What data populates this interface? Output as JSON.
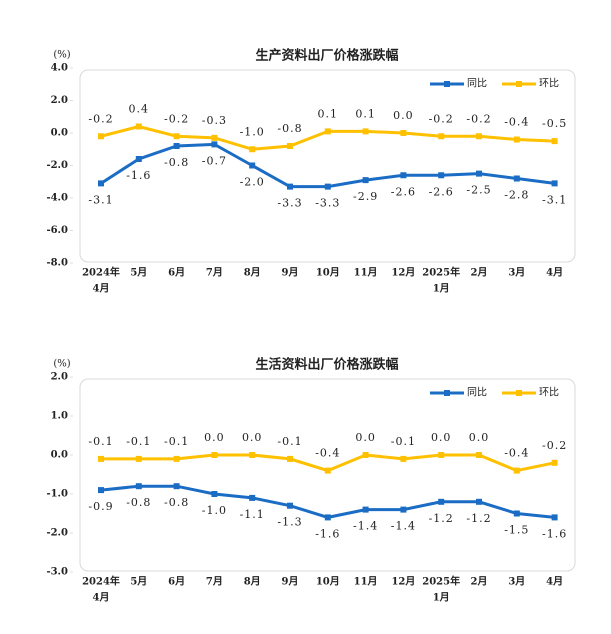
{
  "chart_data": [
    {
      "type": "line",
      "title": "生产资料出厂价格涨跌幅",
      "y_label": "(%)",
      "categories": [
        [
          "2024年",
          "4月"
        ],
        [
          "5月"
        ],
        [
          "6月"
        ],
        [
          "7月"
        ],
        [
          "8月"
        ],
        [
          "9月"
        ],
        [
          "10月"
        ],
        [
          "11月"
        ],
        [
          "12月"
        ],
        [
          "2025年",
          "1月"
        ],
        [
          "2月"
        ],
        [
          "3月"
        ],
        [
          "4月"
        ]
      ],
      "series": [
        {
          "name": "同比",
          "color": "#1a6cc4",
          "label_side": "below",
          "values": [
            -3.1,
            -1.6,
            -0.8,
            -0.7,
            -2.0,
            -3.3,
            -3.3,
            -2.9,
            -2.6,
            -2.6,
            -2.5,
            -2.8,
            -3.1
          ],
          "value_labels": [
            "-3.1",
            "-1.6",
            "-0.8",
            "-0.7",
            "-2.0",
            "-3.3",
            "-3.3",
            "-2.9",
            "-2.6",
            "-2.6",
            "-2.5",
            "-2.8",
            "-3.1"
          ]
        },
        {
          "name": "环比",
          "color": "#ffc000",
          "label_side": "above",
          "values": [
            -0.2,
            0.4,
            -0.2,
            -0.3,
            -1.0,
            -0.8,
            0.1,
            0.1,
            0.0,
            -0.2,
            -0.2,
            -0.4,
            -0.5
          ],
          "value_labels": [
            "-0.2",
            "0.4",
            "-0.2",
            "-0.3",
            "-1.0",
            "-0.8",
            "0.1",
            "0.1",
            "0.0",
            "-0.2",
            "-0.2",
            "-0.4",
            "-0.5"
          ]
        }
      ],
      "ylim": [
        -8,
        4
      ],
      "yticks": [
        {
          "value": 4,
          "label": "4.0"
        },
        {
          "value": 2,
          "label": "2.0"
        },
        {
          "value": 0,
          "label": "0.0"
        },
        {
          "value": -2,
          "label": "-2.0"
        },
        {
          "value": -4,
          "label": "-4.0"
        },
        {
          "value": -6,
          "label": "-6.0"
        },
        {
          "value": -8,
          "label": "-8.0"
        }
      ],
      "legend": "top-right"
    },
    {
      "type": "line",
      "title": "生活资料出厂价格涨跌幅",
      "y_label": "(%)",
      "categories": [
        [
          "2024年",
          "4月"
        ],
        [
          "5月"
        ],
        [
          "6月"
        ],
        [
          "7月"
        ],
        [
          "8月"
        ],
        [
          "9月"
        ],
        [
          "10月"
        ],
        [
          "11月"
        ],
        [
          "12月"
        ],
        [
          "2025年",
          "1月"
        ],
        [
          "2月"
        ],
        [
          "3月"
        ],
        [
          "4月"
        ]
      ],
      "series": [
        {
          "name": "同比",
          "color": "#1a6cc4",
          "label_side": "below",
          "values": [
            -0.9,
            -0.8,
            -0.8,
            -1.0,
            -1.1,
            -1.3,
            -1.6,
            -1.4,
            -1.4,
            -1.2,
            -1.2,
            -1.5,
            -1.6
          ],
          "value_labels": [
            "-0.9",
            "-0.8",
            "-0.8",
            "-1.0",
            "-1.1",
            "-1.3",
            "-1.6",
            "-1.4",
            "-1.4",
            "-1.2",
            "-1.2",
            "-1.5",
            "-1.6"
          ]
        },
        {
          "name": "环比",
          "color": "#ffc000",
          "label_side": "above",
          "values": [
            -0.1,
            -0.1,
            -0.1,
            0.0,
            0.0,
            -0.1,
            -0.4,
            0.0,
            -0.1,
            0.0,
            0.0,
            -0.4,
            -0.2
          ],
          "value_labels": [
            "-0.1",
            "-0.1",
            "-0.1",
            "0.0",
            "0.0",
            "-0.1",
            "-0.4",
            "0.0",
            "-0.1",
            "0.0",
            "0.0",
            "-0.4",
            "-0.2"
          ]
        }
      ],
      "ylim": [
        -3,
        2
      ],
      "yticks": [
        {
          "value": 2,
          "label": "2.0"
        },
        {
          "value": 1,
          "label": "1.0"
        },
        {
          "value": 0,
          "label": "0.0"
        },
        {
          "value": -1,
          "label": "-1.0"
        },
        {
          "value": -2,
          "label": "-2.0"
        },
        {
          "value": -3,
          "label": "-3.0"
        }
      ],
      "legend": "top-right"
    }
  ]
}
